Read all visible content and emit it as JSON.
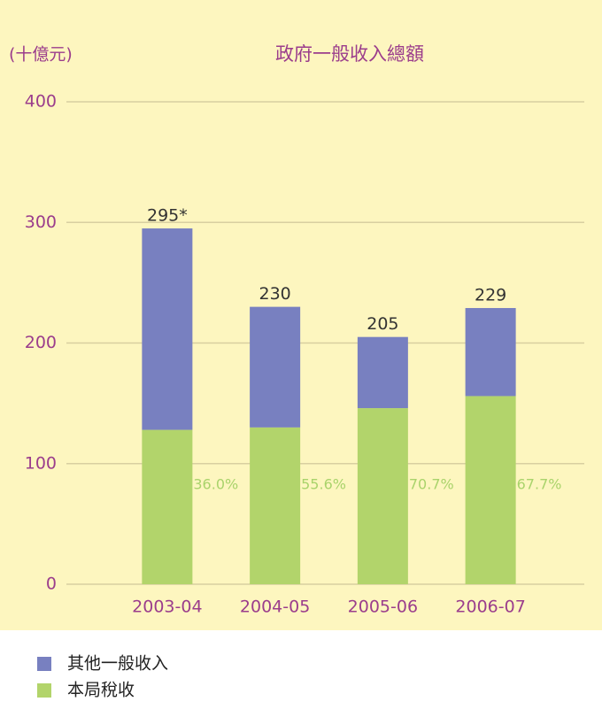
{
  "chart_data": {
    "type": "stacked_bar",
    "title": "政府一般收入總額",
    "y_axis_label": "(十億元)",
    "categories": [
      "2003-04",
      "2004-05",
      "2005-06",
      "2006-07"
    ],
    "series": [
      {
        "name": "本局稅收",
        "color": "#b2d46b",
        "values": [
          128,
          130,
          146,
          156
        ]
      },
      {
        "name": "其他一般收入",
        "color": "#7880c0",
        "values": [
          167,
          100,
          59,
          73
        ]
      }
    ],
    "totals": [
      295,
      230,
      205,
      229
    ],
    "total_labels": [
      "295*",
      "230",
      "205",
      "229"
    ],
    "percentages": [
      36.0,
      55.6,
      70.7,
      67.7
    ],
    "percentage_labels": [
      "36.0%",
      "55.6%",
      "70.7%",
      "67.7%"
    ],
    "ylim": [
      0,
      400
    ],
    "yticks": [
      0,
      100,
      200,
      300,
      400
    ],
    "grid": true
  }
}
